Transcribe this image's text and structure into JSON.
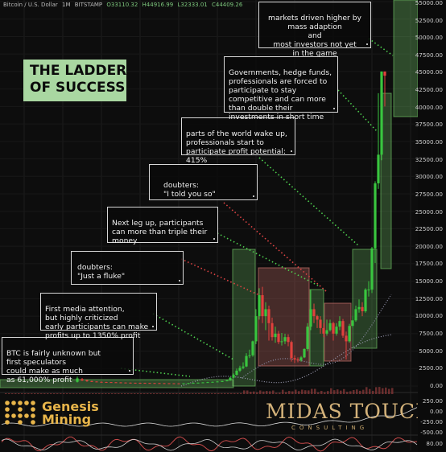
{
  "header": {
    "symbol": "Bitcoin / U.S. Dollar",
    "interval": "1M",
    "exchange": "BITSTAMP",
    "open": "O33110.32",
    "high": "H44916.99",
    "low": "L32333.01",
    "close": "C44409.26"
  },
  "title": {
    "line1": "THE LADDER",
    "line2": "OF SUCCESS"
  },
  "annotations": [
    {
      "id": "a1",
      "text": "BTC is fairly unknown but\nfirst speculators\ncould make as much\nas 61,000% profit"
    },
    {
      "id": "a2",
      "text": "First media attention,\nbut highly criticized\nearly participants can make\nprofits up to 1350% profit"
    },
    {
      "id": "a3",
      "text": "doubters:\n\"Just a fluke\""
    },
    {
      "id": "a4",
      "text": "Next leg up, participants\ncan more than triple their\nmoney"
    },
    {
      "id": "a5",
      "text": "doubters:\n\"I told you so\""
    },
    {
      "id": "a6",
      "text": "parts of the world wake up,\nprofessionals start to\nparticipate profit potential:\n415%"
    },
    {
      "id": "a7",
      "text": "Governments, hedge funds,\nprofessionals are forced to\nparticipate to stay\ncompetitive and can more\nthan double their\ninvestments in short time"
    },
    {
      "id": "a8",
      "text": "markets driven higher by\nmass adaption\nand\nmost investors not yet\nin the game"
    }
  ],
  "branding": {
    "left_name_line1": "Genesis",
    "left_name_line2": "Mining",
    "right_name": "MIDAS TOUCH",
    "right_sub": "CONSULTING"
  },
  "colors": {
    "up": "#39c53f",
    "down": "#e0413d",
    "box_green": "#6cbd63",
    "box_red": "#c9706a",
    "arrow_green": "#4fd14f",
    "arrow_red": "#e04444"
  },
  "chart_data": {
    "type": "candlestick",
    "y_axis_ticks": [
      "55000.00",
      "52500.00",
      "50000.00",
      "47500.00",
      "45000.00",
      "42500.00",
      "40000.00",
      "37500.00",
      "35000.00",
      "32500.00",
      "30000.00",
      "27500.00",
      "25000.00",
      "22500.00",
      "20000.00",
      "17500.00",
      "15000.00",
      "12500.00",
      "10000.00",
      "7500.00",
      "5000.00",
      "2500.00",
      "0.00"
    ],
    "y_axis_ticks_lower": [
      "250.00",
      "0.00",
      "-250.00",
      "-500.00"
    ],
    "y_axis_ticks_indicator": [
      "80.00"
    ],
    "ylim": [
      0,
      55000
    ],
    "interval": "1M",
    "last_close": 44409.26
  }
}
